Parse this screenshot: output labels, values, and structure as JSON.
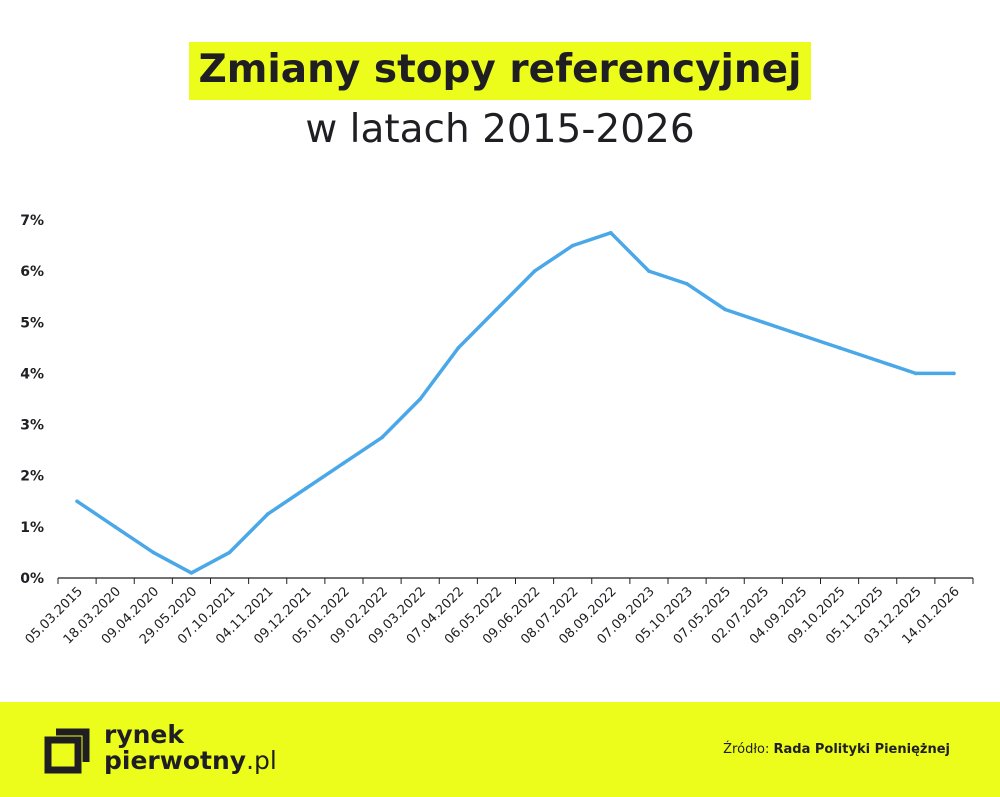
{
  "header": {
    "title": "Zmiany stopy referencyjnej",
    "subtitle": "w latach 2015-2026"
  },
  "chart_data": {
    "type": "line",
    "title": "Zmiany stopy referencyjnej",
    "subtitle": "w latach 2015-2026",
    "xlabel": "",
    "ylabel": "",
    "ylim": [
      0,
      7
    ],
    "y_ticks": [
      "0%",
      "1%",
      "2%",
      "3%",
      "4%",
      "5%",
      "6%",
      "7%"
    ],
    "grid": false,
    "categories": [
      "05.03.2015",
      "18.03.2020",
      "09.04.2020",
      "29.05.2020",
      "07.10.2021",
      "04.11.2021",
      "09.12.2021",
      "05.01.2022",
      "09.02.2022",
      "09.03.2022",
      "07.04.2022",
      "06.05.2022",
      "09.06.2022",
      "08.07.2022",
      "08.09.2022",
      "07.09.2023",
      "05.10.2023",
      "07.05.2025",
      "02.07.2025",
      "04.09.2025",
      "09.10.2025",
      "05.11.2025",
      "03.12.2025",
      "14.01.2026"
    ],
    "series": [
      {
        "values": [
          1.5,
          1.0,
          0.5,
          0.1,
          0.5,
          1.25,
          1.75,
          2.25,
          2.75,
          3.5,
          4.5,
          5.25,
          6.0,
          6.5,
          6.75,
          6.0,
          5.75,
          5.25,
          5.0,
          4.75,
          4.5,
          4.25,
          4.0,
          4.0
        ]
      }
    ],
    "colors": {
      "line": "#4aa8e8",
      "axis": "#1f1f23"
    }
  },
  "footer": {
    "logo_line1": "rynek",
    "logo_line2": "pierwotny",
    "logo_domain": ".pl",
    "source_label": "Źródło:",
    "source_name": "Rada Polityki Pieniężnej"
  },
  "colors": {
    "accent": "#ecfd1c",
    "text": "#1f1f23"
  }
}
